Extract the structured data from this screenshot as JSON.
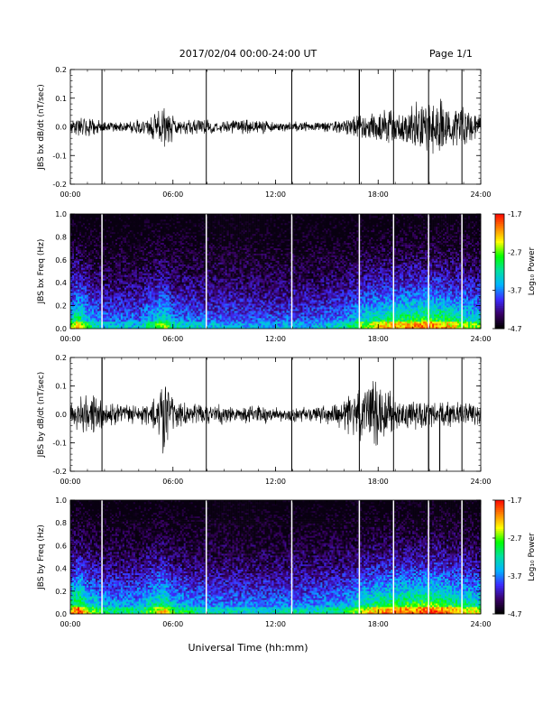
{
  "header": {
    "title": "2017/02/04  00:00-24:00 UT",
    "page": "Page 1/1"
  },
  "footer": {
    "xlabel": "Universal Time (hh:mm)"
  },
  "colors": {
    "trace": "#000000",
    "gap_lines": "#000000",
    "spectrogram_gap_lines": "#ffffff",
    "colormap": [
      "#000000",
      "#3a0068",
      "#3c2cff",
      "#00b4ff",
      "#00e0a0",
      "#00ff00",
      "#ffff00",
      "#ff8000",
      "#ff0000"
    ]
  },
  "chart_data": [
    {
      "type": "line",
      "panel": "bx-time-series",
      "ylabel": "JBS bx dB/dt (nT/sec)",
      "ylim": [
        -0.2,
        0.2
      ],
      "yticks": [
        "-0.2",
        "-0.1",
        "0.0",
        "0.1",
        "0.2"
      ],
      "xlim_hours": [
        0,
        24
      ],
      "xticks": [
        "00:00",
        "06:00",
        "12:00",
        "18:00",
        "24:00"
      ],
      "gap_markers_hours": [
        1.85,
        7.95,
        12.95,
        16.9,
        18.9,
        20.95,
        22.9
      ],
      "series": [
        {
          "x_hours": [
            0,
            0.5,
            1.0,
            1.5,
            2.0,
            3.0,
            4.0,
            5.0,
            5.5,
            6.0,
            6.5,
            7.0,
            8.0,
            9.0,
            10.0,
            11.0,
            12.0,
            13.0,
            14.0,
            15.0,
            16.0,
            16.5,
            17.0,
            17.5,
            18.0,
            18.5,
            19.0,
            19.5,
            20.0,
            20.5,
            21.0,
            21.5,
            22.0,
            22.5,
            23.0,
            23.5,
            24.0
          ],
          "envelope": [
            0.03,
            0.04,
            0.05,
            0.03,
            0.02,
            0.02,
            0.03,
            0.05,
            0.08,
            0.05,
            0.03,
            0.03,
            0.03,
            0.02,
            0.03,
            0.03,
            0.02,
            0.02,
            0.02,
            0.02,
            0.03,
            0.04,
            0.05,
            0.06,
            0.06,
            0.07,
            0.06,
            0.07,
            0.08,
            0.12,
            0.1,
            0.12,
            0.1,
            0.08,
            0.07,
            0.06,
            0.05
          ]
        }
      ],
      "spikes": [
        {
          "x_hour": 16.9,
          "y": 0.2
        },
        {
          "x_hour": 20.95,
          "y": -0.2
        }
      ]
    },
    {
      "type": "heatmap",
      "panel": "bx-spectrogram",
      "ylabel": "JBS bx Freq (Hz)",
      "ylim": [
        0.0,
        1.0
      ],
      "yticks": [
        "0.0",
        "0.2",
        "0.4",
        "0.6",
        "0.8",
        "1.0"
      ],
      "xlim_hours": [
        0,
        24
      ],
      "xticks": [
        "00:00",
        "06:00",
        "12:00",
        "18:00",
        "24:00"
      ],
      "colorbar_label": "Log₁₀ Power",
      "colorbar_ticks": [
        "-1.7",
        "-2.7",
        "-3.7",
        "-4.7"
      ],
      "color_range": [
        -4.7,
        -1.7
      ],
      "gap_markers_hours": [
        1.85,
        7.95,
        12.95,
        16.9,
        18.9,
        20.95,
        22.9
      ],
      "activity_hours": [
        0.0,
        0.5,
        1.0,
        2.0,
        4.0,
        5.5,
        6.0,
        8.0,
        10.0,
        12.0,
        14.0,
        16.0,
        17.0,
        18.0,
        19.0,
        20.0,
        21.0,
        22.0,
        23.0,
        24.0
      ],
      "activity_level": [
        0.45,
        0.6,
        0.4,
        0.25,
        0.25,
        0.5,
        0.3,
        0.25,
        0.22,
        0.22,
        0.22,
        0.3,
        0.45,
        0.55,
        0.6,
        0.62,
        0.65,
        0.6,
        0.5,
        0.45
      ]
    },
    {
      "type": "line",
      "panel": "by-time-series",
      "ylabel": "JBS by dB/dt (nT/sec)",
      "ylim": [
        -0.2,
        0.2
      ],
      "yticks": [
        "-0.2",
        "-0.1",
        "0.0",
        "0.1",
        "0.2"
      ],
      "xlim_hours": [
        0,
        24
      ],
      "xticks": [
        "00:00",
        "06:00",
        "12:00",
        "18:00",
        "24:00"
      ],
      "gap_markers_hours": [
        1.85,
        7.95,
        12.95,
        16.9,
        18.9,
        20.95,
        22.9
      ],
      "series": [
        {
          "x_hours": [
            0,
            0.5,
            1.0,
            1.5,
            2.0,
            3.0,
            4.0,
            5.0,
            5.4,
            5.6,
            6.0,
            6.5,
            7.0,
            8.0,
            9.0,
            10.0,
            11.0,
            12.0,
            13.0,
            14.0,
            15.0,
            16.0,
            16.5,
            17.0,
            17.5,
            18.0,
            18.5,
            19.0,
            19.5,
            20.0,
            20.5,
            21.0,
            21.5,
            22.0,
            22.5,
            23.0,
            23.5,
            24.0
          ],
          "envelope": [
            0.04,
            0.06,
            0.09,
            0.08,
            0.05,
            0.04,
            0.04,
            0.06,
            0.18,
            0.16,
            0.06,
            0.05,
            0.04,
            0.04,
            0.04,
            0.03,
            0.04,
            0.03,
            0.03,
            0.03,
            0.04,
            0.06,
            0.09,
            0.1,
            0.14,
            0.13,
            0.1,
            0.08,
            0.07,
            0.06,
            0.06,
            0.06,
            0.05,
            0.05,
            0.05,
            0.05,
            0.05,
            0.04
          ]
        }
      ],
      "spikes": [
        {
          "x_hour": 1.85,
          "y": 0.2
        },
        {
          "x_hour": 16.9,
          "y": 0.2
        },
        {
          "x_hour": 20.95,
          "y": -0.2
        },
        {
          "x_hour": 21.6,
          "y": -0.2
        }
      ]
    },
    {
      "type": "heatmap",
      "panel": "by-spectrogram",
      "ylabel": "JBS by Freq (Hz)",
      "ylim": [
        0.0,
        1.0
      ],
      "yticks": [
        "0.0",
        "0.2",
        "0.4",
        "0.6",
        "0.8",
        "1.0"
      ],
      "xlim_hours": [
        0,
        24
      ],
      "xticks": [
        "00:00",
        "06:00",
        "12:00",
        "18:00",
        "24:00"
      ],
      "colorbar_label": "Log₁₀ Power",
      "colorbar_ticks": [
        "-1.7",
        "-2.7",
        "-3.7",
        "-4.7"
      ],
      "color_range": [
        -4.7,
        -1.7
      ],
      "gap_markers_hours": [
        1.85,
        7.95,
        12.95,
        16.9,
        18.9,
        20.95,
        22.9
      ],
      "activity_hours": [
        0.0,
        0.5,
        1.0,
        2.0,
        4.0,
        5.5,
        6.0,
        8.0,
        10.0,
        12.0,
        14.0,
        16.0,
        17.0,
        18.0,
        19.0,
        20.0,
        21.0,
        22.0,
        23.0,
        24.0
      ],
      "activity_level": [
        0.55,
        0.7,
        0.5,
        0.35,
        0.35,
        0.6,
        0.4,
        0.3,
        0.28,
        0.28,
        0.3,
        0.35,
        0.5,
        0.6,
        0.65,
        0.65,
        0.7,
        0.65,
        0.55,
        0.5
      ]
    }
  ]
}
